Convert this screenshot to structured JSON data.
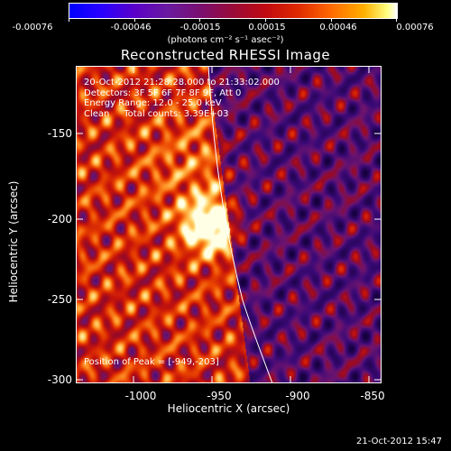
{
  "colorbar": {
    "labels": [
      "-0.00076",
      "-0.00046",
      "-0.00015",
      "0.00015",
      "0.00046",
      "0.00076"
    ],
    "units": "(photons cm⁻² s⁻¹ asec⁻²)"
  },
  "title": "Reconstructed RHESSI Image",
  "info": {
    "time": "20-Oct-2012 21:28:28.000 to 21:33:02.000",
    "detectors": "Detectors: 3F 5F 6F 7F 8F 9F, Att 0",
    "energy": "Energy Range: 12.0 - 25.0 keV",
    "clean": "Clean     Total counts: 3.39E+03"
  },
  "peak_text": "Position of Peak = [-949,-203]",
  "axes": {
    "xlabel": "Heliocentric X (arcsec)",
    "ylabel": "Heliocentric Y (arcsec)",
    "xticks": [
      "-1000",
      "-950",
      "-900",
      "-850"
    ],
    "yticks": [
      "-150",
      "-200",
      "-250",
      "-300"
    ]
  },
  "timestamp": "21-Oct-2012 15:47"
}
